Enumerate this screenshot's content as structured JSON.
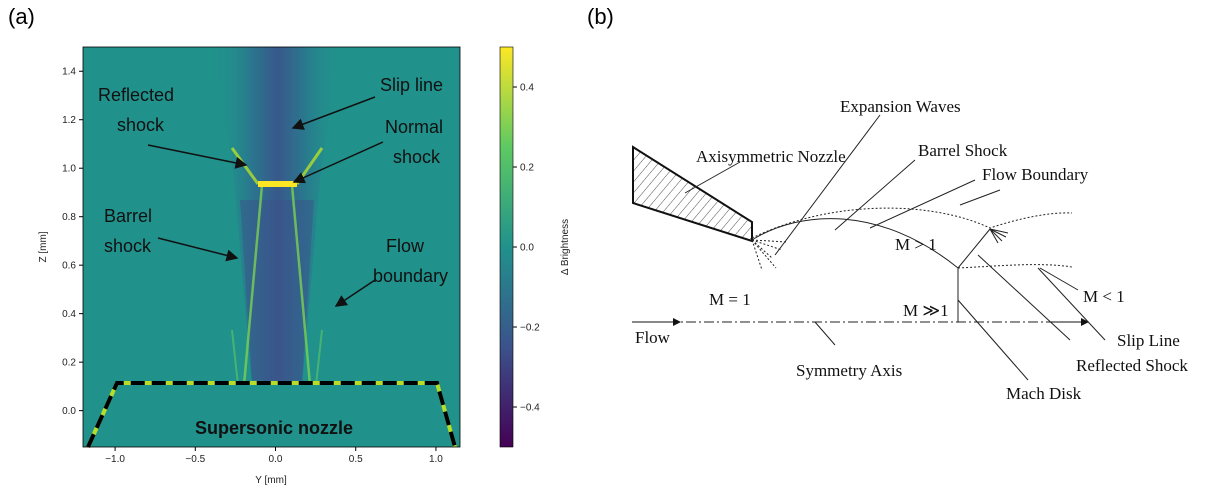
{
  "panel_a": {
    "label": "(a)",
    "x_axis_label": "Y [mm]",
    "y_axis_label": "Z [mm]",
    "xlim": [
      -1.2,
      1.15
    ],
    "ylim": [
      -0.15,
      1.5
    ],
    "xticks": [
      {
        "value": -1,
        "label": "−1.0"
      },
      {
        "value": -0.5,
        "label": "−0.5"
      },
      {
        "value": 0,
        "label": "0.0"
      },
      {
        "value": 0.5,
        "label": "0.5"
      },
      {
        "value": 1,
        "label": "1.0"
      }
    ],
    "yticks": [
      {
        "value": 0,
        "label": "0.0"
      },
      {
        "value": 0.2,
        "label": "0.2"
      },
      {
        "value": 0.4,
        "label": "0.4"
      },
      {
        "value": 0.6,
        "label": "0.6"
      },
      {
        "value": 0.8,
        "label": "0.8"
      },
      {
        "value": 1,
        "label": "1.0"
      },
      {
        "value": 1.2,
        "label": "1.2"
      },
      {
        "value": 1.4,
        "label": "1.4"
      }
    ],
    "colorbar": {
      "label": "Δ Brightness",
      "lim": [
        -0.5,
        0.5
      ],
      "ticks": [
        {
          "value": -0.4,
          "label": "−0.4"
        },
        {
          "value": -0.2,
          "label": "−0.2"
        },
        {
          "value": 0,
          "label": "0.0"
        },
        0.2,
        0.4
      ]
    },
    "annotations": {
      "reflected_shock": [
        "Reflected",
        "shock"
      ],
      "slip_line": "Slip line",
      "normal_shock": [
        "Normal",
        "shock"
      ],
      "barrel_shock": [
        "Barrel",
        "shock"
      ],
      "flow_boundary": [
        "Flow",
        "boundary"
      ],
      "nozzle": "Supersonic nozzle"
    }
  },
  "panel_b": {
    "label": "(b)",
    "labels": {
      "axisymmetric_nozzle": "Axisymmetric Nozzle",
      "expansion_waves": "Expansion Waves",
      "barrel_shock": "Barrel Shock",
      "flow_boundary": "Flow Boundary",
      "m_gt_1": "M > 1",
      "m_eq_1": "M = 1",
      "m_much_gt_1": "M ≫1",
      "m_lt_1": "M < 1",
      "flow": "Flow",
      "symmetry_axis": "Symmetry Axis",
      "mach_disk": "Mach Disk",
      "slip_line": "Slip Line",
      "reflected_shock": "Reflected Shock"
    }
  }
}
